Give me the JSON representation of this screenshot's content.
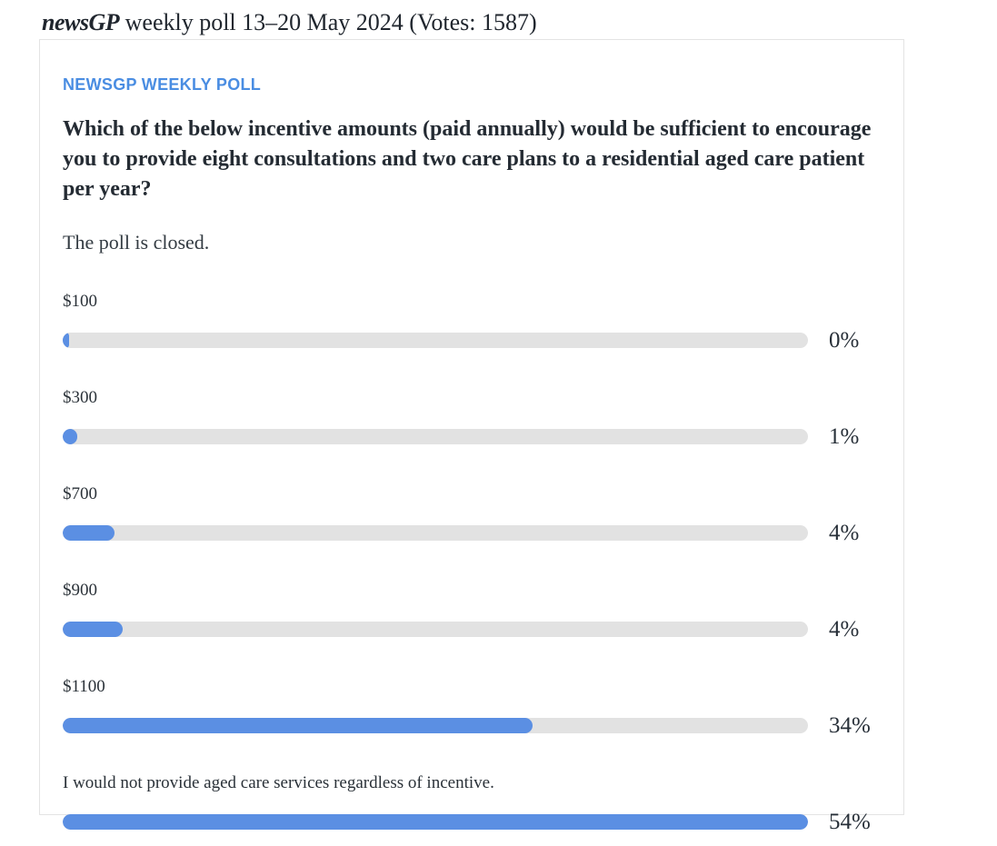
{
  "page": {
    "title_brand": "newsGP",
    "title_rest": " weekly poll 13–20 May 2024 (Votes: 1587)"
  },
  "poll": {
    "kicker": "NEWSGP WEEKLY POLL",
    "question": "Which of the below incentive amounts (paid annually) would be sufficient to encourage you to provide eight consultations and two care plans to a residential aged care patient per year?",
    "status": "The poll is closed.",
    "options": [
      {
        "label": "$100",
        "pct_label": "0%",
        "value": 0,
        "bar_fraction_pct": 0.9
      },
      {
        "label": "$300",
        "pct_label": "1%",
        "value": 1,
        "bar_fraction_pct": 2.0
      },
      {
        "label": "$700",
        "pct_label": "4%",
        "value": 4,
        "bar_fraction_pct": 7.0
      },
      {
        "label": "$900",
        "pct_label": "4%",
        "value": 4,
        "bar_fraction_pct": 8.1
      },
      {
        "label": "$1100",
        "pct_label": "34%",
        "value": 34,
        "bar_fraction_pct": 63.0
      },
      {
        "label": "I would not provide aged care services regardless of incentive.",
        "pct_label": "54%",
        "value": 54,
        "bar_fraction_pct": 100
      }
    ]
  },
  "chart_data": {
    "type": "bar",
    "orientation": "horizontal",
    "title": "newsGP weekly poll 13–20 May 2024",
    "votes_total": 1587,
    "categories": [
      "$100",
      "$300",
      "$700",
      "$900",
      "$1100",
      "I would not provide aged care services regardless of incentive."
    ],
    "values": [
      0,
      1,
      4,
      4,
      34,
      54
    ],
    "unit": "%",
    "value_labels": [
      "0%",
      "1%",
      "4%",
      "4%",
      "34%",
      "54%"
    ],
    "layout_hints": {
      "bars_normalized_to_max_value": 54,
      "grid": false,
      "value_label_position": "right-of-bar"
    }
  },
  "colors": {
    "bar_fill_blue": "#5b8fe3",
    "bar_track_gray": "#e2e2e2",
    "kicker_blue": "#4a8de2",
    "text_dark": "#242b33",
    "card_border": "#e4e4e4"
  }
}
